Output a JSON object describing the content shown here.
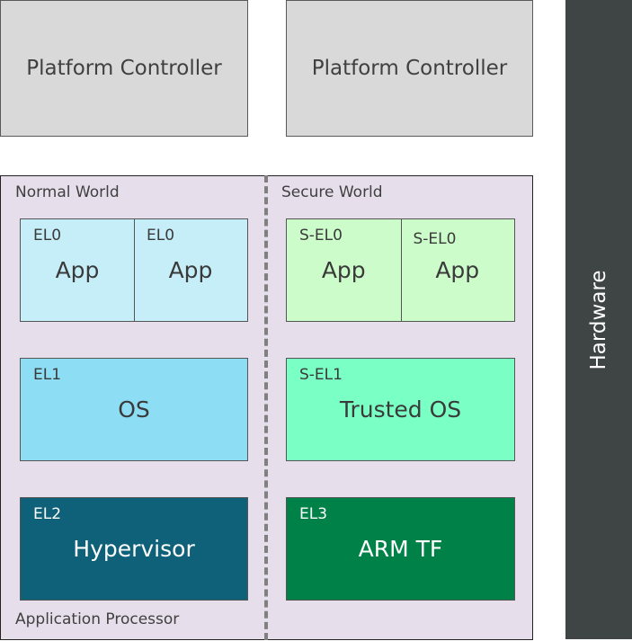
{
  "platform_controllers": [
    "Platform Controller",
    "Platform Controller"
  ],
  "hardware": "Hardware",
  "application_processor": "Application Processor",
  "normal_world": {
    "label": "Normal World",
    "el0": [
      {
        "level": "EL0",
        "name": "App"
      },
      {
        "level": "EL0",
        "name": "App"
      }
    ],
    "el1": {
      "level": "EL1",
      "name": "OS"
    },
    "el2": {
      "level": "EL2",
      "name": "Hypervisor"
    }
  },
  "secure_world": {
    "label": "Secure World",
    "el0": [
      {
        "level": "S-EL0",
        "name": "App"
      },
      {
        "level": "S-EL0",
        "name": "App"
      }
    ],
    "el1": {
      "level": "S-EL1",
      "name": "Trusted OS"
    },
    "el3": {
      "level": "EL3",
      "name": "ARM TF"
    }
  },
  "colors": {
    "el0": "#c6eef8",
    "el1": "#8dddf5",
    "el2": "#0e6179",
    "sel0": "#ccfcca",
    "sel1": "#7affc4",
    "el3": "#008148",
    "hardware": "#3f4444",
    "platform": "#d9d9d9",
    "processor": "#e6dfeb"
  }
}
